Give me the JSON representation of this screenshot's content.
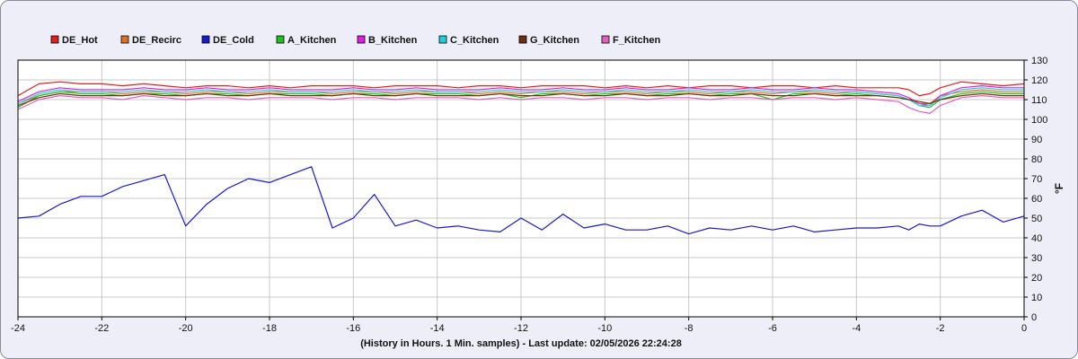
{
  "chart_data": {
    "type": "line",
    "xlabel": "(History in Hours. 1 Min. samples) - Last update: 02/05/2026 22:24:28",
    "ylabel": "°F",
    "xlim": [
      -24,
      0
    ],
    "ylim": [
      0,
      130
    ],
    "x_ticks": [
      -24,
      -22,
      -20,
      -18,
      -16,
      -14,
      -12,
      -10,
      -8,
      -6,
      -4,
      -2,
      0
    ],
    "y_ticks": [
      0,
      10,
      20,
      30,
      40,
      50,
      60,
      70,
      80,
      90,
      100,
      110,
      120,
      130
    ],
    "grid": true,
    "legend_position": "top-left",
    "x": [
      -24,
      -23.5,
      -23,
      -22.5,
      -22,
      -21.5,
      -21,
      -20.5,
      -20,
      -19.5,
      -19,
      -18.5,
      -18,
      -17.5,
      -17,
      -16.5,
      -16,
      -15.5,
      -15,
      -14.5,
      -14,
      -13.5,
      -13,
      -12.5,
      -12,
      -11.5,
      -11,
      -10.5,
      -10,
      -9.5,
      -9,
      -8.5,
      -8,
      -7.5,
      -7,
      -6.5,
      -6,
      -5.5,
      -5,
      -4.5,
      -4,
      -3.5,
      -3,
      -2.75,
      -2.5,
      -2.25,
      -2,
      -1.5,
      -1,
      -0.5,
      0
    ],
    "series": [
      {
        "name": "DE_Hot",
        "color": "#e0201c",
        "values": [
          112,
          118,
          119,
          118,
          118,
          117,
          118,
          117,
          116,
          117,
          117,
          116,
          117,
          116,
          117,
          117,
          117,
          116,
          117,
          117,
          117,
          116,
          117,
          117,
          116,
          117,
          117,
          117,
          116,
          117,
          116,
          117,
          116,
          117,
          117,
          116,
          117,
          117,
          116,
          117,
          116,
          116,
          116,
          115,
          112,
          113,
          116,
          119,
          118,
          117,
          118
        ]
      },
      {
        "name": "DE_Recirc",
        "color": "#e07020",
        "values": [
          108,
          112,
          114,
          114,
          114,
          113,
          114,
          114,
          113,
          114,
          114,
          113,
          114,
          114,
          114,
          113,
          114,
          114,
          113,
          114,
          114,
          114,
          113,
          114,
          113,
          114,
          114,
          113,
          114,
          114,
          113,
          114,
          114,
          113,
          114,
          114,
          113,
          114,
          114,
          113,
          114,
          113,
          112,
          110,
          108,
          108,
          112,
          114,
          115,
          114,
          114
        ]
      },
      {
        "name": "DE_Cold",
        "color": "#1a1acc",
        "values": [
          50,
          51,
          57,
          61,
          61,
          66,
          69,
          72,
          46,
          57,
          65,
          70,
          68,
          72,
          76,
          45,
          50,
          62,
          46,
          49,
          45,
          46,
          44,
          43,
          50,
          44,
          52,
          45,
          47,
          44,
          44,
          46,
          42,
          45,
          44,
          46,
          44,
          46,
          43,
          44,
          45,
          45,
          46,
          44,
          47,
          46,
          46,
          51,
          54,
          48,
          51
        ]
      },
      {
        "name": "A_Kitchen",
        "color": "#20c020",
        "values": [
          106,
          112,
          114,
          113,
          113,
          112,
          113,
          113,
          112,
          113,
          113,
          112,
          113,
          113,
          113,
          112,
          113,
          113,
          112,
          113,
          113,
          113,
          112,
          113,
          111,
          113,
          113,
          112,
          113,
          113,
          112,
          113,
          113,
          112,
          113,
          113,
          110,
          113,
          113,
          112,
          113,
          112,
          111,
          110,
          107,
          106,
          110,
          113,
          114,
          113,
          113
        ]
      },
      {
        "name": "B_Kitchen",
        "color": "#e020e0",
        "values": [
          109,
          114,
          116,
          115,
          115,
          115,
          116,
          115,
          115,
          116,
          115,
          115,
          116,
          115,
          115,
          115,
          116,
          115,
          115,
          116,
          115,
          115,
          115,
          116,
          115,
          115,
          116,
          115,
          115,
          116,
          115,
          115,
          116,
          115,
          115,
          116,
          115,
          115,
          116,
          115,
          115,
          114,
          113,
          111,
          108,
          107,
          112,
          116,
          117,
          116,
          116
        ]
      },
      {
        "name": "C_Kitchen",
        "color": "#20d0e0",
        "values": [
          108,
          113,
          115,
          114,
          114,
          114,
          115,
          114,
          114,
          115,
          114,
          114,
          115,
          114,
          114,
          114,
          115,
          114,
          114,
          115,
          114,
          114,
          114,
          115,
          114,
          114,
          115,
          114,
          114,
          115,
          114,
          114,
          115,
          114,
          114,
          115,
          114,
          114,
          115,
          114,
          114,
          113,
          112,
          110,
          107,
          107,
          111,
          115,
          116,
          115,
          115
        ]
      },
      {
        "name": "G_Kitchen",
        "color": "#703010",
        "values": [
          107,
          111,
          113,
          112,
          112,
          112,
          113,
          112,
          112,
          113,
          112,
          112,
          113,
          112,
          112,
          112,
          113,
          112,
          112,
          113,
          112,
          112,
          112,
          113,
          112,
          112,
          113,
          112,
          112,
          113,
          112,
          112,
          113,
          112,
          112,
          113,
          112,
          112,
          113,
          112,
          112,
          112,
          111,
          110,
          109,
          108,
          110,
          112,
          113,
          112,
          112
        ]
      },
      {
        "name": "F_Kitchen",
        "color": "#e060c0",
        "values": [
          105,
          110,
          112,
          111,
          111,
          110,
          112,
          111,
          110,
          111,
          111,
          110,
          111,
          111,
          111,
          110,
          111,
          111,
          110,
          111,
          111,
          111,
          110,
          111,
          110,
          111,
          111,
          110,
          111,
          111,
          110,
          111,
          111,
          110,
          111,
          111,
          110,
          111,
          111,
          110,
          111,
          110,
          109,
          106,
          104,
          103,
          107,
          111,
          112,
          111,
          111
        ]
      }
    ]
  }
}
